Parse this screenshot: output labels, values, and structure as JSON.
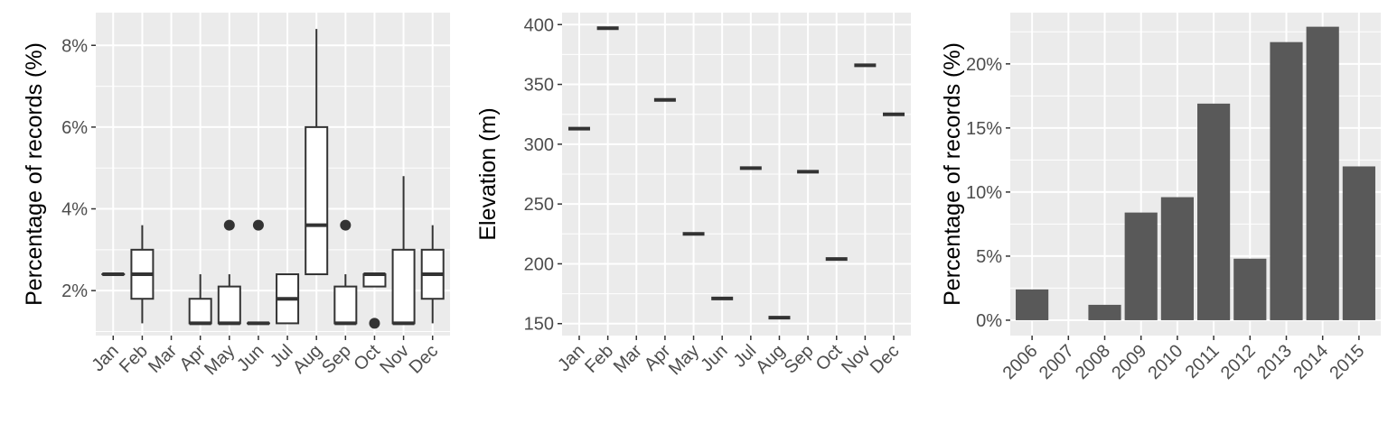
{
  "colors": {
    "panel_bg": "#ebebeb",
    "grid": "#ffffff",
    "ink": "#333333",
    "bar_fill": "#595959",
    "box_fill": "#ffffff"
  },
  "chart_data": [
    {
      "type": "box",
      "title": "",
      "xlabel": "",
      "ylabel": "Percentage of records (%)",
      "ylim": [
        0.9,
        8.8
      ],
      "grid": true,
      "categories": [
        "Jan",
        "Feb",
        "Mar",
        "Apr",
        "May",
        "Jun",
        "Jul",
        "Aug",
        "Sep",
        "Oct",
        "Nov",
        "Dec"
      ],
      "y_ticks": [
        2,
        4,
        6,
        8
      ],
      "y_tick_labels": [
        "2%",
        "4%",
        "6%",
        "8%"
      ],
      "boxes": [
        {
          "category": "Jan",
          "min": 2.4,
          "q1": 2.4,
          "median": 2.4,
          "q3": 2.4,
          "max": 2.4,
          "outliers": []
        },
        {
          "category": "Feb",
          "min": 1.2,
          "q1": 1.8,
          "median": 2.4,
          "q3": 3.0,
          "max": 3.6,
          "outliers": []
        },
        {
          "category": "Apr",
          "min": 1.2,
          "q1": 1.2,
          "median": 1.2,
          "q3": 1.8,
          "max": 2.4,
          "outliers": []
        },
        {
          "category": "May",
          "min": 1.2,
          "q1": 1.2,
          "median": 1.2,
          "q3": 2.1,
          "max": 2.4,
          "outliers": [
            3.6
          ]
        },
        {
          "category": "Jun",
          "min": 1.2,
          "q1": 1.2,
          "median": 1.2,
          "q3": 1.2,
          "max": 1.2,
          "outliers": [
            3.6
          ]
        },
        {
          "category": "Jul",
          "min": 1.2,
          "q1": 1.2,
          "median": 1.8,
          "q3": 2.4,
          "max": 2.4,
          "outliers": []
        },
        {
          "category": "Aug",
          "min": 2.4,
          "q1": 2.4,
          "median": 3.6,
          "q3": 6.0,
          "max": 8.4,
          "outliers": []
        },
        {
          "category": "Sep",
          "min": 1.2,
          "q1": 1.2,
          "median": 1.2,
          "q3": 2.1,
          "max": 2.4,
          "outliers": [
            3.6
          ]
        },
        {
          "category": "Oct",
          "min": 2.1,
          "q1": 2.1,
          "median": 2.4,
          "q3": 2.4,
          "max": 2.4,
          "outliers": [
            1.2
          ]
        },
        {
          "category": "Nov",
          "min": 1.2,
          "q1": 1.2,
          "median": 1.2,
          "q3": 3.0,
          "max": 4.8,
          "outliers": []
        },
        {
          "category": "Dec",
          "min": 1.2,
          "q1": 1.8,
          "median": 2.4,
          "q3": 3.0,
          "max": 3.6,
          "outliers": []
        }
      ]
    },
    {
      "type": "box",
      "title": "",
      "xlabel": "",
      "ylabel": "Elevation (m)",
      "ylim": [
        140,
        410
      ],
      "grid": true,
      "categories": [
        "Jan",
        "Feb",
        "Mar",
        "Apr",
        "May",
        "Jun",
        "Jul",
        "Aug",
        "Sep",
        "Oct",
        "Nov",
        "Dec"
      ],
      "y_ticks": [
        150,
        200,
        250,
        300,
        350,
        400
      ],
      "y_tick_labels": [
        "150",
        "200",
        "250",
        "300",
        "350",
        "400"
      ],
      "boxes": [
        {
          "category": "Jan",
          "median": 313
        },
        {
          "category": "Feb",
          "median": 397
        },
        {
          "category": "Apr",
          "median": 337
        },
        {
          "category": "May",
          "median": 225
        },
        {
          "category": "Jun",
          "median": 171
        },
        {
          "category": "Jul",
          "median": 280
        },
        {
          "category": "Aug",
          "median": 155
        },
        {
          "category": "Sep",
          "median": 277
        },
        {
          "category": "Oct",
          "median": 204
        },
        {
          "category": "Nov",
          "median": 366
        },
        {
          "category": "Dec",
          "median": 325
        }
      ]
    },
    {
      "type": "bar",
      "title": "",
      "xlabel": "",
      "ylabel": "Percentage of records (%)",
      "ylim": [
        -1.2,
        24
      ],
      "grid": true,
      "categories": [
        "2006",
        "2007",
        "2008",
        "2009",
        "2010",
        "2011",
        "2012",
        "2013",
        "2014",
        "2015"
      ],
      "values": [
        2.4,
        0,
        1.2,
        8.4,
        9.6,
        16.9,
        4.8,
        21.7,
        22.9,
        12.0
      ],
      "y_ticks": [
        0,
        5,
        10,
        15,
        20
      ],
      "y_tick_labels": [
        "0%",
        "5%",
        "10%",
        "15%",
        "20%"
      ]
    }
  ]
}
